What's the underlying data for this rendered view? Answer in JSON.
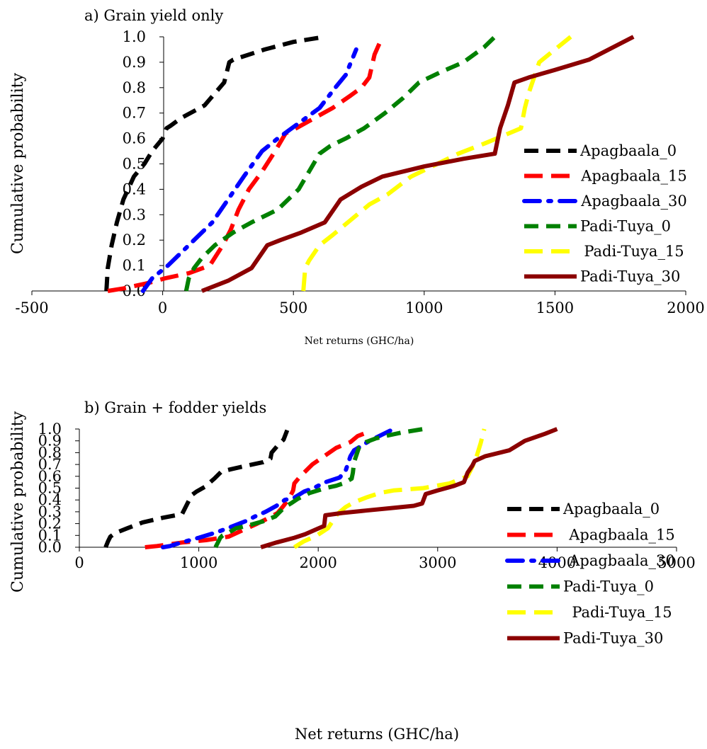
{
  "chart_data": [
    {
      "type": "line",
      "title": "a) Grain yield only",
      "xlabel": "Net returns (GHC/ha)",
      "ylabel": "Cumulative probability",
      "xlim": [
        -500,
        2000
      ],
      "ylim": [
        0,
        1
      ],
      "x_ticks": [
        "-500",
        "0",
        "500",
        "1000",
        "1500",
        "2000"
      ],
      "y_ticks": [
        "0.0",
        "0.1",
        "0.2",
        "0.3",
        "0.4",
        "0.5",
        "0.6",
        "0.7",
        "0.8",
        "0.9",
        "1.0"
      ],
      "grid": false,
      "legend_position": "right",
      "series": [
        {
          "name": "Apagbaala_0",
          "color": "#000000",
          "dash": "dash",
          "x": [
            -215,
            -210,
            -195,
            -175,
            -150,
            -110,
            -70,
            -40,
            0,
            15,
            30,
            70,
            160,
            235,
            255,
            270,
            390,
            500,
            560,
            620
          ],
          "y": [
            0.0,
            0.09,
            0.18,
            0.27,
            0.36,
            0.45,
            0.5,
            0.55,
            0.6,
            0.64,
            0.65,
            0.68,
            0.73,
            0.82,
            0.9,
            0.91,
            0.95,
            0.98,
            0.99,
            1.0
          ]
        },
        {
          "name": "Apagbaala_15",
          "color": "#ff0000",
          "dash": "longdash",
          "x": [
            -210,
            -150,
            -60,
            10,
            100,
            180,
            230,
            260,
            290,
            330,
            380,
            430,
            470,
            510,
            580,
            650,
            720,
            760,
            790,
            810,
            840
          ],
          "y": [
            0.0,
            0.01,
            0.03,
            0.05,
            0.07,
            0.1,
            0.18,
            0.24,
            0.32,
            0.4,
            0.47,
            0.55,
            0.62,
            0.64,
            0.68,
            0.72,
            0.77,
            0.8,
            0.84,
            0.93,
            1.0
          ]
        },
        {
          "name": "Apagbaala_30",
          "color": "#0000ff",
          "dash": "dashdot",
          "x": [
            -75,
            -40,
            20,
            100,
            150,
            190,
            250,
            310,
            380,
            440,
            520,
            600,
            660,
            700,
            720,
            740
          ],
          "y": [
            0.0,
            0.05,
            0.1,
            0.18,
            0.23,
            0.27,
            0.36,
            0.45,
            0.55,
            0.6,
            0.66,
            0.72,
            0.8,
            0.85,
            0.9,
            0.95
          ]
        },
        {
          "name": "Padi-Tuya_0",
          "color": "#008000",
          "dash": "dash",
          "x": [
            90,
            100,
            120,
            150,
            200,
            270,
            340,
            440,
            520,
            600,
            640,
            700,
            770,
            850,
            920,
            980,
            1060,
            1150,
            1230,
            1270
          ],
          "y": [
            0.0,
            0.05,
            0.09,
            0.13,
            0.18,
            0.23,
            0.27,
            0.32,
            0.4,
            0.54,
            0.57,
            0.6,
            0.64,
            0.7,
            0.76,
            0.82,
            0.86,
            0.9,
            0.96,
            1.0
          ]
        },
        {
          "name": "Padi-Tuya_15",
          "color": "#ffff00",
          "dash": "longdash",
          "x": [
            538,
            545,
            560,
            600,
            650,
            720,
            790,
            860,
            950,
            1050,
            1130,
            1230,
            1300,
            1370,
            1385,
            1400,
            1420,
            1440,
            1500,
            1560
          ],
          "y": [
            0.0,
            0.09,
            0.12,
            0.18,
            0.22,
            0.28,
            0.34,
            0.38,
            0.45,
            0.5,
            0.54,
            0.58,
            0.61,
            0.64,
            0.72,
            0.78,
            0.84,
            0.9,
            0.95,
            1.0
          ]
        },
        {
          "name": "Padi-Tuya_30",
          "color": "#8b0000",
          "dash": "solid",
          "x": [
            150,
            250,
            340,
            400,
            450,
            530,
            620,
            680,
            760,
            840,
            1000,
            1150,
            1270,
            1290,
            1320,
            1345,
            1400,
            1500,
            1630,
            1800
          ],
          "y": [
            0.0,
            0.04,
            0.09,
            0.18,
            0.2,
            0.23,
            0.27,
            0.36,
            0.41,
            0.45,
            0.49,
            0.52,
            0.54,
            0.64,
            0.73,
            0.82,
            0.84,
            0.87,
            0.91,
            1.0
          ]
        }
      ]
    },
    {
      "type": "line",
      "title": "b) Grain + fodder yields",
      "xlabel": "Net returns (GHC/ha)",
      "ylabel": "Cumulative probability",
      "xlim": [
        0,
        5000
      ],
      "ylim": [
        0,
        1
      ],
      "x_ticks": [
        "0",
        "1000",
        "2000",
        "3000",
        "4000",
        "5000"
      ],
      "y_ticks": [
        "0.0",
        "0.1",
        "0.2",
        "0.3",
        "0.4",
        "0.5",
        "0.6",
        "0.7",
        "0.8",
        "0.9",
        "1.0"
      ],
      "grid": false,
      "legend_position": "right",
      "series": [
        {
          "name": "Apagbaala_0",
          "color": "#000000",
          "dash": "dash",
          "x": [
            220,
            240,
            260,
            300,
            400,
            530,
            700,
            860,
            900,
            940,
            980,
            1050,
            1130,
            1190,
            1270,
            1400,
            1540,
            1600,
            1610,
            1660,
            1710,
            1740
          ],
          "y": [
            0.0,
            0.05,
            0.09,
            0.12,
            0.16,
            0.21,
            0.25,
            0.28,
            0.36,
            0.44,
            0.47,
            0.51,
            0.58,
            0.64,
            0.66,
            0.69,
            0.72,
            0.75,
            0.8,
            0.86,
            0.91,
            0.99
          ]
        },
        {
          "name": "Apagbaala_15",
          "color": "#ff0000",
          "dash": "longdash",
          "x": [
            550,
            650,
            760,
            860,
            1060,
            1250,
            1380,
            1490,
            1590,
            1660,
            1710,
            1760,
            1790,
            1800,
            1850,
            1950,
            2050,
            2150,
            2270,
            2330,
            2380
          ],
          "y": [
            0.0,
            0.01,
            0.025,
            0.04,
            0.06,
            0.09,
            0.15,
            0.2,
            0.25,
            0.29,
            0.35,
            0.42,
            0.48,
            0.54,
            0.6,
            0.7,
            0.77,
            0.84,
            0.89,
            0.94,
            0.96
          ]
        },
        {
          "name": "Apagbaala_30",
          "color": "#0000ff",
          "dash": "dashdot",
          "x": [
            700,
            760,
            820,
            1000,
            1160,
            1290,
            1390,
            1470,
            1560,
            1650,
            1720,
            1800,
            1880,
            1960,
            2060,
            2180,
            2230,
            2270,
            2300,
            2430,
            2610
          ],
          "y": [
            0.0,
            0.01,
            0.03,
            0.08,
            0.13,
            0.18,
            0.22,
            0.26,
            0.3,
            0.35,
            0.4,
            0.42,
            0.47,
            0.5,
            0.55,
            0.59,
            0.65,
            0.77,
            0.82,
            0.9,
            0.99
          ]
        },
        {
          "name": "Padi-Tuya_0",
          "color": "#008000",
          "dash": "dash",
          "x": [
            1140,
            1160,
            1180,
            1200,
            1260,
            1310,
            1400,
            1540,
            1640,
            1680,
            1720,
            1770,
            1830,
            1930,
            2060,
            2150,
            2210,
            2280,
            2290,
            2300,
            2340,
            2400,
            2480,
            2560,
            2700,
            2880
          ],
          "y": [
            0.0,
            0.04,
            0.08,
            0.1,
            0.13,
            0.16,
            0.18,
            0.22,
            0.26,
            0.3,
            0.34,
            0.37,
            0.41,
            0.46,
            0.5,
            0.52,
            0.54,
            0.58,
            0.63,
            0.72,
            0.84,
            0.89,
            0.92,
            0.94,
            0.97,
            1.0
          ]
        },
        {
          "name": "Padi-Tuya_15",
          "color": "#ffff00",
          "dash": "longdash",
          "x": [
            1800,
            1880,
            1990,
            2080,
            2120,
            2160,
            2230,
            2300,
            2400,
            2520,
            2630,
            2880,
            3100,
            3250,
            3290,
            3330,
            3360,
            3390
          ],
          "y": [
            0.0,
            0.05,
            0.1,
            0.16,
            0.22,
            0.28,
            0.34,
            0.38,
            0.42,
            0.46,
            0.48,
            0.5,
            0.54,
            0.6,
            0.68,
            0.78,
            0.88,
            1.0
          ]
        },
        {
          "name": "Padi-Tuya_30",
          "color": "#8b0000",
          "dash": "solid",
          "x": [
            1520,
            1650,
            1800,
            1890,
            1980,
            2050,
            2060,
            2200,
            2400,
            2600,
            2800,
            2870,
            2900,
            3000,
            3140,
            3220,
            3250,
            3290,
            3310,
            3400,
            3600,
            3730,
            3900,
            4000
          ],
          "y": [
            0.0,
            0.04,
            0.08,
            0.11,
            0.15,
            0.18,
            0.27,
            0.29,
            0.31,
            0.33,
            0.35,
            0.37,
            0.45,
            0.48,
            0.52,
            0.55,
            0.63,
            0.69,
            0.73,
            0.77,
            0.82,
            0.9,
            0.96,
            1.0
          ]
        }
      ]
    }
  ]
}
